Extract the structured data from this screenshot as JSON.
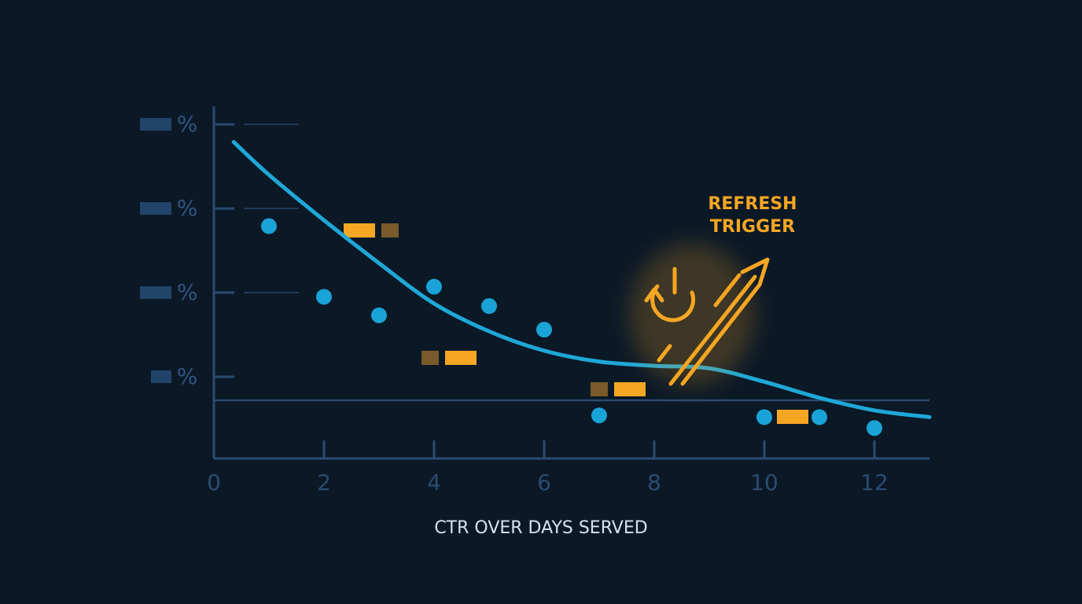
{
  "chart_data": {
    "type": "scatter",
    "title": "CTR OVER DAYS SERVED",
    "annotation": [
      "REFRESH",
      "TRIGGER"
    ],
    "xlim": [
      0,
      13
    ],
    "xticks": [
      0,
      2,
      4,
      6,
      8,
      10,
      12
    ],
    "ylim": [
      0,
      4.3
    ],
    "yticks": [
      {
        "value": 1,
        "label": "%"
      },
      {
        "value": 2,
        "label": "%"
      },
      {
        "value": 3,
        "label": "%"
      },
      {
        "value": 4,
        "label": "%"
      }
    ],
    "threshold": 0.72,
    "series": [
      {
        "type": "scatter",
        "color": "#1aa3d6",
        "x": [
          1,
          2,
          3,
          4,
          5,
          6,
          7,
          10,
          11,
          12
        ],
        "values": [
          2.79,
          1.95,
          1.73,
          2.07,
          1.84,
          1.56,
          0.54,
          0.52,
          0.52,
          0.39
        ]
      },
      {
        "type": "line",
        "color": "#1ea8d8",
        "x": [
          0.36,
          1,
          2,
          3,
          4,
          5,
          6,
          7,
          8,
          9,
          10,
          11,
          12,
          13
        ],
        "values": [
          3.79,
          3.4,
          2.86,
          2.35,
          1.87,
          1.54,
          1.31,
          1.18,
          1.13,
          1.1,
          0.94,
          0.75,
          0.6,
          0.52
        ]
      }
    ],
    "accent_color": "#f5a623"
  }
}
